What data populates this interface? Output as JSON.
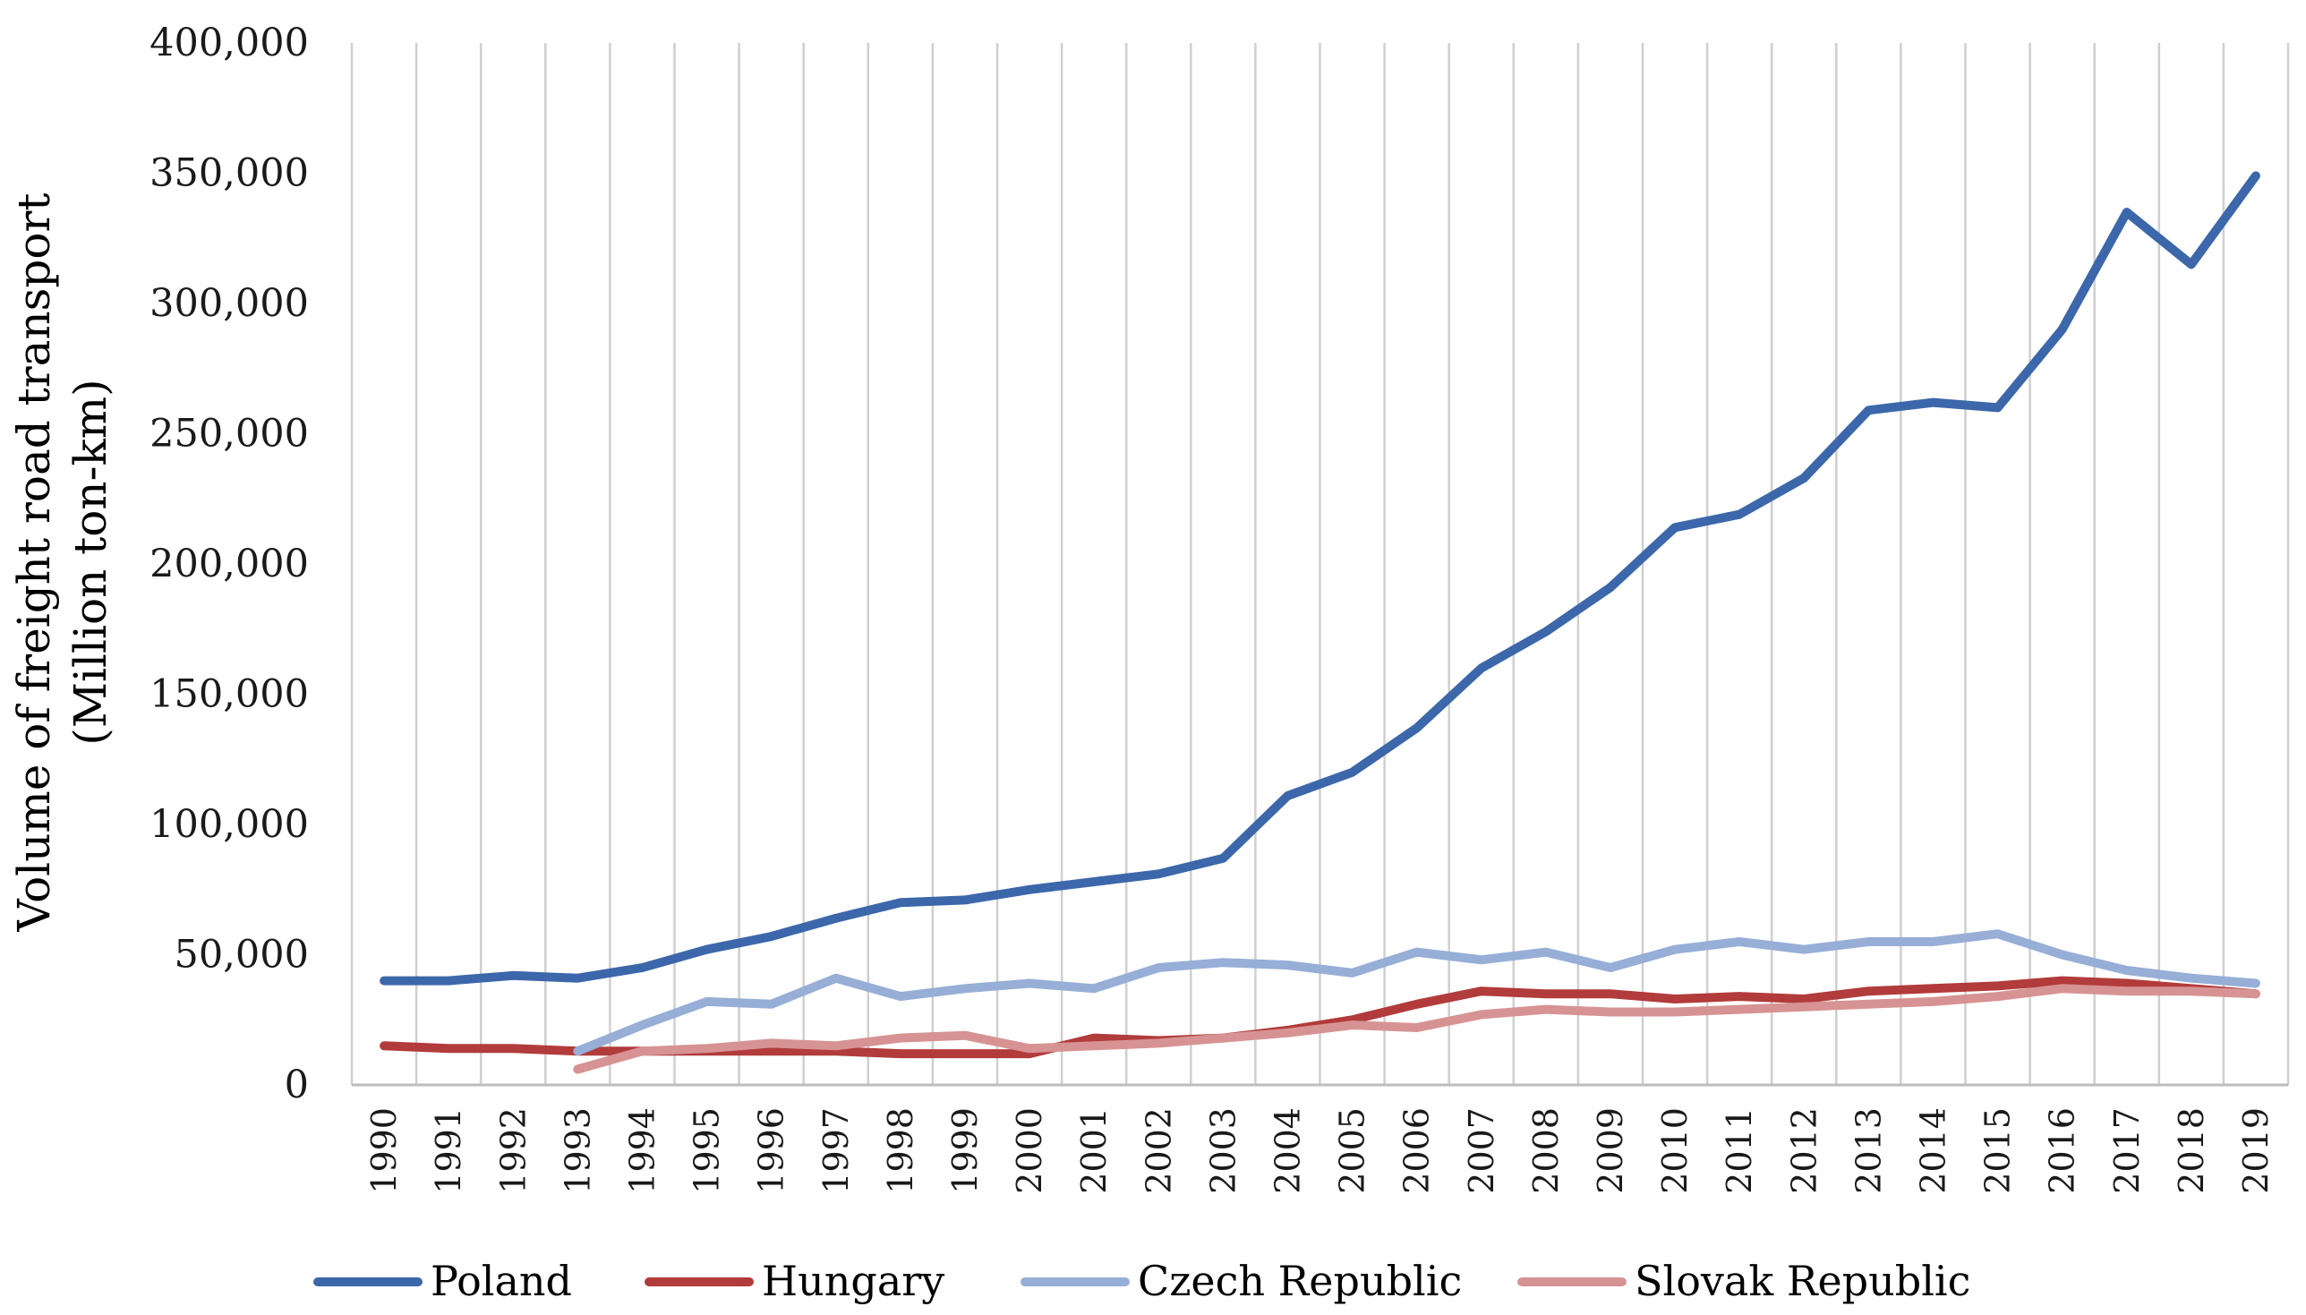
{
  "chart_data": {
    "type": "line",
    "title": "",
    "xlabel": "",
    "ylabel_lines": [
      "Volume of freight road transport",
      "(Million ton-km)"
    ],
    "ylim": [
      0,
      400000
    ],
    "yticks": [
      0,
      50000,
      100000,
      150000,
      200000,
      250000,
      300000,
      350000,
      400000
    ],
    "ytick_labels": [
      "0",
      "50,000",
      "100,000",
      "150,000",
      "200,000",
      "250,000",
      "300,000",
      "350,000",
      "400,000"
    ],
    "grid": "vertical",
    "legend_position": "bottom",
    "categories": [
      "1990",
      "1991",
      "1992",
      "1993",
      "1994",
      "1995",
      "1996",
      "1997",
      "1998",
      "1999",
      "2000",
      "2001",
      "2002",
      "2003",
      "2004",
      "2005",
      "2006",
      "2007",
      "2008",
      "2009",
      "2010",
      "2011",
      "2012",
      "2013",
      "2014",
      "2015",
      "2016",
      "2017",
      "2018",
      "2019"
    ],
    "series": [
      {
        "name": "Poland",
        "color": "#3c67aa",
        "values": [
          40000,
          40000,
          42000,
          41000,
          45000,
          52000,
          57000,
          64000,
          70000,
          71000,
          75000,
          78000,
          81000,
          87000,
          111000,
          120000,
          137000,
          160000,
          174000,
          191000,
          214000,
          219000,
          233000,
          259000,
          262000,
          260000,
          290000,
          335000,
          315000,
          349000
        ]
      },
      {
        "name": "Hungary",
        "color": "#b23b3b",
        "values": [
          15000,
          14000,
          14000,
          13000,
          13000,
          13000,
          13000,
          13000,
          12000,
          12000,
          12000,
          18000,
          17000,
          18000,
          21000,
          25000,
          31000,
          36000,
          35000,
          35000,
          33000,
          34000,
          33000,
          36000,
          37000,
          38000,
          40000,
          39000,
          37000,
          35000
        ]
      },
      {
        "name": "Czech Republic",
        "color": "#97aed6",
        "values": [
          null,
          null,
          null,
          13000,
          23000,
          32000,
          31000,
          41000,
          34000,
          37000,
          39000,
          37000,
          45000,
          47000,
          46000,
          43000,
          51000,
          48000,
          51000,
          45000,
          52000,
          55000,
          52000,
          55000,
          55000,
          58000,
          50000,
          44000,
          41000,
          39000
        ]
      },
      {
        "name": "Slovak Republic",
        "color": "#d79393",
        "values": [
          null,
          null,
          null,
          6000,
          13000,
          14000,
          16000,
          15000,
          18000,
          19000,
          14000,
          15000,
          16000,
          18000,
          20000,
          23000,
          22000,
          27000,
          29000,
          28000,
          28000,
          29000,
          30000,
          31000,
          32000,
          34000,
          37000,
          36000,
          36000,
          35000
        ]
      }
    ]
  }
}
